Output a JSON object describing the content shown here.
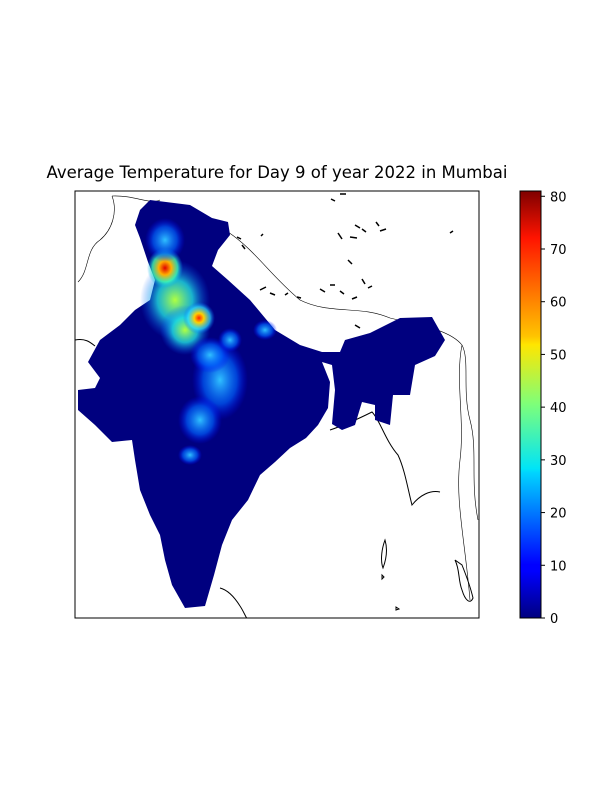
{
  "title": "Average Temperature for Day 9 of year 2022 in Mumbai",
  "colorbar": {
    "min": 0,
    "max": 81,
    "ticks": [
      "0",
      "10",
      "20",
      "30",
      "40",
      "50",
      "60",
      "70",
      "80"
    ],
    "colormap": "jet"
  },
  "chart_data": {
    "type": "heatmap",
    "title": "Average Temperature for Day 9 of year 2022 in Mumbai",
    "region": "India",
    "colorbar_range": [
      0,
      81
    ],
    "hotspots": [
      {
        "label": "",
        "value": 75
      },
      {
        "label": "",
        "value": 70
      },
      {
        "label": "",
        "value": 45
      },
      {
        "label": "",
        "value": 22
      }
    ],
    "background_value": 0
  }
}
